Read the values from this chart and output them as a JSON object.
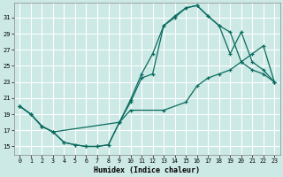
{
  "xlabel": "Humidex (Indice chaleur)",
  "bg_color": "#cce9e5",
  "grid_color": "#ffffff",
  "line_color": "#0a6b5e",
  "xlim": [
    -0.5,
    23.5
  ],
  "ylim": [
    14.0,
    32.8
  ],
  "yticks": [
    15,
    17,
    19,
    21,
    23,
    25,
    27,
    29,
    31
  ],
  "xticks": [
    0,
    1,
    2,
    3,
    4,
    5,
    6,
    7,
    8,
    9,
    10,
    11,
    12,
    13,
    14,
    15,
    16,
    17,
    18,
    19,
    20,
    21,
    22,
    23
  ],
  "line1_x": [
    0,
    1,
    2,
    3,
    4,
    5,
    6,
    7,
    8,
    9,
    10,
    11,
    12,
    13,
    14,
    15,
    16,
    17,
    18,
    19,
    20,
    21,
    22,
    23
  ],
  "line1_y": [
    20.0,
    19.0,
    17.5,
    16.8,
    15.5,
    15.2,
    15.0,
    15.0,
    15.2,
    18.0,
    20.5,
    23.5,
    24.0,
    30.0,
    31.0,
    32.2,
    32.5,
    31.2,
    30.0,
    29.2,
    25.5,
    24.5,
    24.0,
    23.0
  ],
  "line2_x": [
    0,
    1,
    2,
    3,
    4,
    5,
    6,
    7,
    8,
    9,
    10,
    11,
    12,
    13,
    14,
    15,
    16,
    17,
    18,
    19,
    20,
    21,
    22,
    23
  ],
  "line2_y": [
    20.0,
    19.0,
    17.5,
    16.8,
    15.5,
    15.2,
    15.0,
    15.0,
    15.2,
    18.0,
    20.8,
    24.0,
    26.5,
    30.0,
    31.2,
    32.2,
    32.5,
    31.2,
    30.0,
    26.5,
    29.2,
    25.5,
    24.5,
    23.0
  ],
  "line3_x": [
    0,
    1,
    2,
    3,
    9,
    10,
    13,
    15,
    16,
    17,
    18,
    19,
    20,
    21,
    22,
    23
  ],
  "line3_y": [
    20.0,
    19.0,
    17.5,
    16.8,
    18.0,
    19.5,
    19.5,
    20.5,
    22.5,
    23.5,
    24.0,
    24.5,
    25.5,
    26.5,
    27.5,
    23.0
  ]
}
